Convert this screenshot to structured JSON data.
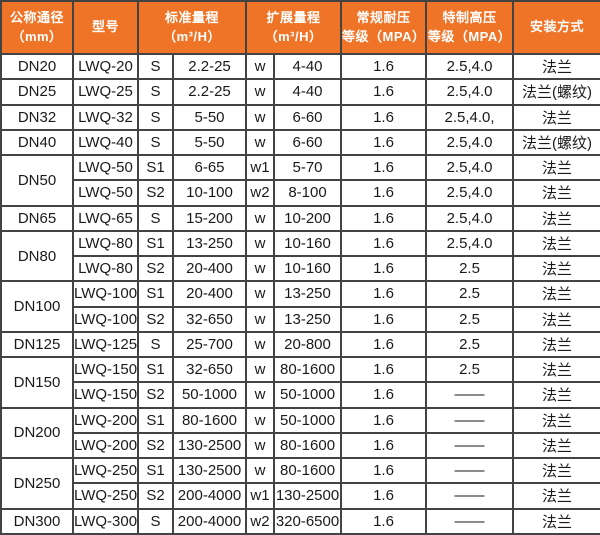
{
  "colors": {
    "header_bg": "#ef7428",
    "header_text": "#ffffff",
    "border": "#434343",
    "body_text": "#1a1a1a"
  },
  "table": {
    "headers": [
      {
        "label": "公称通径\n（mm）",
        "colspan": 1
      },
      {
        "label": "型号",
        "colspan": 1
      },
      {
        "label": "标准量程\n（m³/H）",
        "colspan": 2
      },
      {
        "label": "扩展量程\n（m³/H）",
        "colspan": 2
      },
      {
        "label": "常规耐压\n等级（MPA）",
        "colspan": 1
      },
      {
        "label": "特制高压\n等级（MPA）",
        "colspan": 1
      },
      {
        "label": "安装方式",
        "colspan": 1
      }
    ],
    "rows": [
      {
        "diameter": "DN20",
        "span": 1,
        "model": "LWQ-20",
        "s_mark": "S",
        "s_range": "2.2-25",
        "w_mark": "w",
        "w_range": "4-40",
        "pressure": "1.6",
        "high_pressure": "2.5,4.0",
        "install": "法兰"
      },
      {
        "diameter": "DN25",
        "span": 1,
        "model": "LWQ-25",
        "s_mark": "S",
        "s_range": "2.2-25",
        "w_mark": "w",
        "w_range": "4-40",
        "pressure": "1.6",
        "high_pressure": "2.5,4.0",
        "install": "法兰(螺纹)"
      },
      {
        "diameter": "DN32",
        "span": 1,
        "model": "LWQ-32",
        "s_mark": "S",
        "s_range": "5-50",
        "w_mark": "w",
        "w_range": "6-60",
        "pressure": "1.6",
        "high_pressure": "2.5,4.0,",
        "install": "法兰"
      },
      {
        "diameter": "DN40",
        "span": 1,
        "model": "LWQ-40",
        "s_mark": "S",
        "s_range": "5-50",
        "w_mark": "w",
        "w_range": "6-60",
        "pressure": "1.6",
        "high_pressure": "2.5,4.0",
        "install": "法兰(螺纹)"
      },
      {
        "diameter": "DN50",
        "span": 2,
        "model": "LWQ-50",
        "s_mark": "S1",
        "s_range": "6-65",
        "w_mark": "w1",
        "w_range": "5-70",
        "pressure": "1.6",
        "high_pressure": "2.5,4.0",
        "install": "法兰"
      },
      {
        "diameter": null,
        "span": 0,
        "model": "LWQ-50",
        "s_mark": "S2",
        "s_range": "10-100",
        "w_mark": "w2",
        "w_range": "8-100",
        "pressure": "1.6",
        "high_pressure": "2.5,4.0",
        "install": "法兰"
      },
      {
        "diameter": "DN65",
        "span": 1,
        "model": "LWQ-65",
        "s_mark": "S",
        "s_range": "15-200",
        "w_mark": "w",
        "w_range": "10-200",
        "pressure": "1.6",
        "high_pressure": "2.5,4.0",
        "install": "法兰"
      },
      {
        "diameter": "DN80",
        "span": 2,
        "model": "LWQ-80",
        "s_mark": "S1",
        "s_range": "13-250",
        "w_mark": "w",
        "w_range": "10-160",
        "pressure": "1.6",
        "high_pressure": "2.5,4.0",
        "install": "法兰"
      },
      {
        "diameter": null,
        "span": 0,
        "model": "LWQ-80",
        "s_mark": "S2",
        "s_range": "20-400",
        "w_mark": "w",
        "w_range": "10-160",
        "pressure": "1.6",
        "high_pressure": "2.5",
        "install": "法兰"
      },
      {
        "diameter": "DN100",
        "span": 2,
        "model": "LWQ-100",
        "s_mark": "S1",
        "s_range": "20-400",
        "w_mark": "w",
        "w_range": "13-250",
        "pressure": "1.6",
        "high_pressure": "2.5",
        "install": "法兰"
      },
      {
        "diameter": null,
        "span": 0,
        "model": "LWQ-100",
        "s_mark": "S2",
        "s_range": "32-650",
        "w_mark": "w",
        "w_range": "13-250",
        "pressure": "1.6",
        "high_pressure": "2.5",
        "install": "法兰"
      },
      {
        "diameter": "DN125",
        "span": 1,
        "model": "LWQ-125",
        "s_mark": "S",
        "s_range": "25-700",
        "w_mark": "w",
        "w_range": "20-800",
        "pressure": "1.6",
        "high_pressure": "2.5",
        "install": "法兰"
      },
      {
        "diameter": "DN150",
        "span": 2,
        "model": "LWQ-150",
        "s_mark": "S1",
        "s_range": "32-650",
        "w_mark": "w",
        "w_range": "80-1600",
        "pressure": "1.6",
        "high_pressure": "2.5",
        "install": "法兰"
      },
      {
        "diameter": null,
        "span": 0,
        "model": "LWQ-150",
        "s_mark": "S2",
        "s_range": "50-1000",
        "w_mark": "w",
        "w_range": "50-1000",
        "pressure": "1.6",
        "high_pressure": "——",
        "install": "法兰"
      },
      {
        "diameter": "DN200",
        "span": 2,
        "model": "LWQ-200",
        "s_mark": "S1",
        "s_range": "80-1600",
        "w_mark": "w",
        "w_range": "50-1000",
        "pressure": "1.6",
        "high_pressure": "——",
        "install": "法兰"
      },
      {
        "diameter": null,
        "span": 0,
        "model": "LWQ-200",
        "s_mark": "S2",
        "s_range": "130-2500",
        "w_mark": "w",
        "w_range": "80-1600",
        "pressure": "1.6",
        "high_pressure": "——",
        "install": "法兰"
      },
      {
        "diameter": "DN250",
        "span": 2,
        "model": "LWQ-250",
        "s_mark": "S1",
        "s_range": "130-2500",
        "w_mark": "w",
        "w_range": "80-1600",
        "pressure": "1.6",
        "high_pressure": "——",
        "install": "法兰"
      },
      {
        "diameter": null,
        "span": 0,
        "model": "LWQ-250",
        "s_mark": "S2",
        "s_range": "200-4000",
        "w_mark": "w1",
        "w_range": "130-2500",
        "pressure": "1.6",
        "high_pressure": "——",
        "install": "法兰"
      },
      {
        "diameter": "DN300",
        "span": 1,
        "model": "LWQ-300",
        "s_mark": "S",
        "s_range": "200-4000",
        "w_mark": "w2",
        "w_range": "320-6500",
        "pressure": "1.6",
        "high_pressure": "——",
        "install": "法兰"
      }
    ]
  }
}
